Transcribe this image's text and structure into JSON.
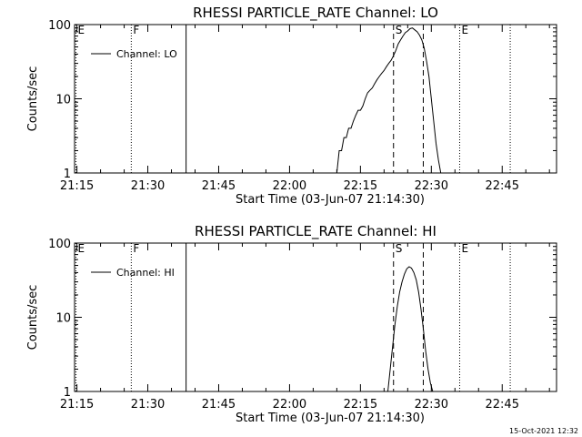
{
  "footer": {
    "timestamp": "15-Oct-2021 12:32"
  },
  "chart_data": [
    {
      "type": "line",
      "title": "RHESSI PARTICLE_RATE Channel: LO",
      "xlabel": "Start Time (03-Jun-07 21:14:30)",
      "ylabel": "Counts/sec",
      "x_unit": "minutes after 21:14:30",
      "xlim": [
        0,
        102
      ],
      "ylim": [
        1,
        100
      ],
      "yscale": "log",
      "x_ticks": [
        {
          "x": 0.5,
          "label": "21:15"
        },
        {
          "x": 15.5,
          "label": "21:30"
        },
        {
          "x": 30.5,
          "label": "21:45"
        },
        {
          "x": 45.5,
          "label": "22:00"
        },
        {
          "x": 60.5,
          "label": "22:15"
        },
        {
          "x": 75.5,
          "label": "22:30"
        },
        {
          "x": 90.5,
          "label": "22:45"
        }
      ],
      "y_ticks": [
        {
          "y": 1,
          "label": "1"
        },
        {
          "y": 10,
          "label": "10"
        },
        {
          "y": 100,
          "label": "100"
        }
      ],
      "legend": {
        "label": "Channel: LO",
        "position": "top-left"
      },
      "markers": [
        {
          "x": 0.3,
          "label": "E",
          "style": "dotted"
        },
        {
          "x": 12.0,
          "label": "F",
          "style": "dotted"
        },
        {
          "x": 23.6,
          "label": "",
          "style": "solid"
        },
        {
          "x": 67.5,
          "label": "S",
          "style": "dashed"
        },
        {
          "x": 73.8,
          "label": "",
          "style": "dashed"
        },
        {
          "x": 81.5,
          "label": "E",
          "style": "dotted"
        },
        {
          "x": 92.2,
          "label": "",
          "style": "dotted"
        }
      ],
      "series": [
        {
          "name": "Channel: LO",
          "x": [
            55.5,
            56,
            56.5,
            57,
            57.5,
            58,
            58.5,
            59,
            59.5,
            60,
            60.5,
            61,
            61.5,
            62,
            62.5,
            63,
            63.5,
            64,
            64.5,
            65,
            65.5,
            66,
            66.5,
            67,
            67.5,
            68,
            68.5,
            69,
            69.5,
            70,
            70.5,
            71,
            71.5,
            72,
            72.5,
            73,
            73.5,
            74,
            74.5,
            75,
            75.5,
            76,
            76.5,
            77,
            77.5
          ],
          "y": [
            1,
            2,
            2,
            3,
            3,
            4,
            4,
            5,
            6,
            7,
            7,
            8,
            10,
            12,
            13,
            14,
            16,
            18,
            20,
            22,
            24,
            27,
            30,
            33,
            38,
            45,
            55,
            62,
            70,
            78,
            82,
            88,
            90,
            85,
            80,
            72,
            62,
            48,
            32,
            20,
            10,
            5,
            2.5,
            1.5,
            1
          ]
        }
      ]
    },
    {
      "type": "line",
      "title": "RHESSI PARTICLE_RATE Channel: HI",
      "xlabel": "Start Time (03-Jun-07 21:14:30)",
      "ylabel": "Counts/sec",
      "x_unit": "minutes after 21:14:30",
      "xlim": [
        0,
        102
      ],
      "ylim": [
        1,
        100
      ],
      "yscale": "log",
      "x_ticks": [
        {
          "x": 0.5,
          "label": "21:15"
        },
        {
          "x": 15.5,
          "label": "21:30"
        },
        {
          "x": 30.5,
          "label": "21:45"
        },
        {
          "x": 45.5,
          "label": "22:00"
        },
        {
          "x": 60.5,
          "label": "22:15"
        },
        {
          "x": 75.5,
          "label": "22:30"
        },
        {
          "x": 90.5,
          "label": "22:45"
        }
      ],
      "y_ticks": [
        {
          "y": 1,
          "label": "1"
        },
        {
          "y": 10,
          "label": "10"
        },
        {
          "y": 100,
          "label": "100"
        }
      ],
      "legend": {
        "label": "Channel: HI",
        "position": "top-left"
      },
      "markers": [
        {
          "x": 0.3,
          "label": "E",
          "style": "dotted"
        },
        {
          "x": 12.0,
          "label": "F",
          "style": "dotted"
        },
        {
          "x": 23.6,
          "label": "",
          "style": "solid"
        },
        {
          "x": 67.5,
          "label": "S",
          "style": "dashed"
        },
        {
          "x": 73.8,
          "label": "",
          "style": "dashed"
        },
        {
          "x": 81.5,
          "label": "E",
          "style": "dotted"
        },
        {
          "x": 92.2,
          "label": "",
          "style": "dotted"
        }
      ],
      "series": [
        {
          "name": "Channel: HI",
          "x": [
            66.3,
            66.8,
            67.3,
            67.8,
            68.3,
            68.8,
            69.3,
            69.8,
            70.3,
            70.8,
            71.3,
            71.8,
            72.3,
            72.8,
            73.3,
            73.8,
            74.3,
            74.8,
            75.3,
            75.8
          ],
          "y": [
            1,
            2,
            4,
            8,
            14,
            22,
            30,
            38,
            45,
            48,
            46,
            40,
            32,
            22,
            13,
            7,
            3.5,
            2,
            1.3,
            1
          ]
        }
      ]
    }
  ]
}
